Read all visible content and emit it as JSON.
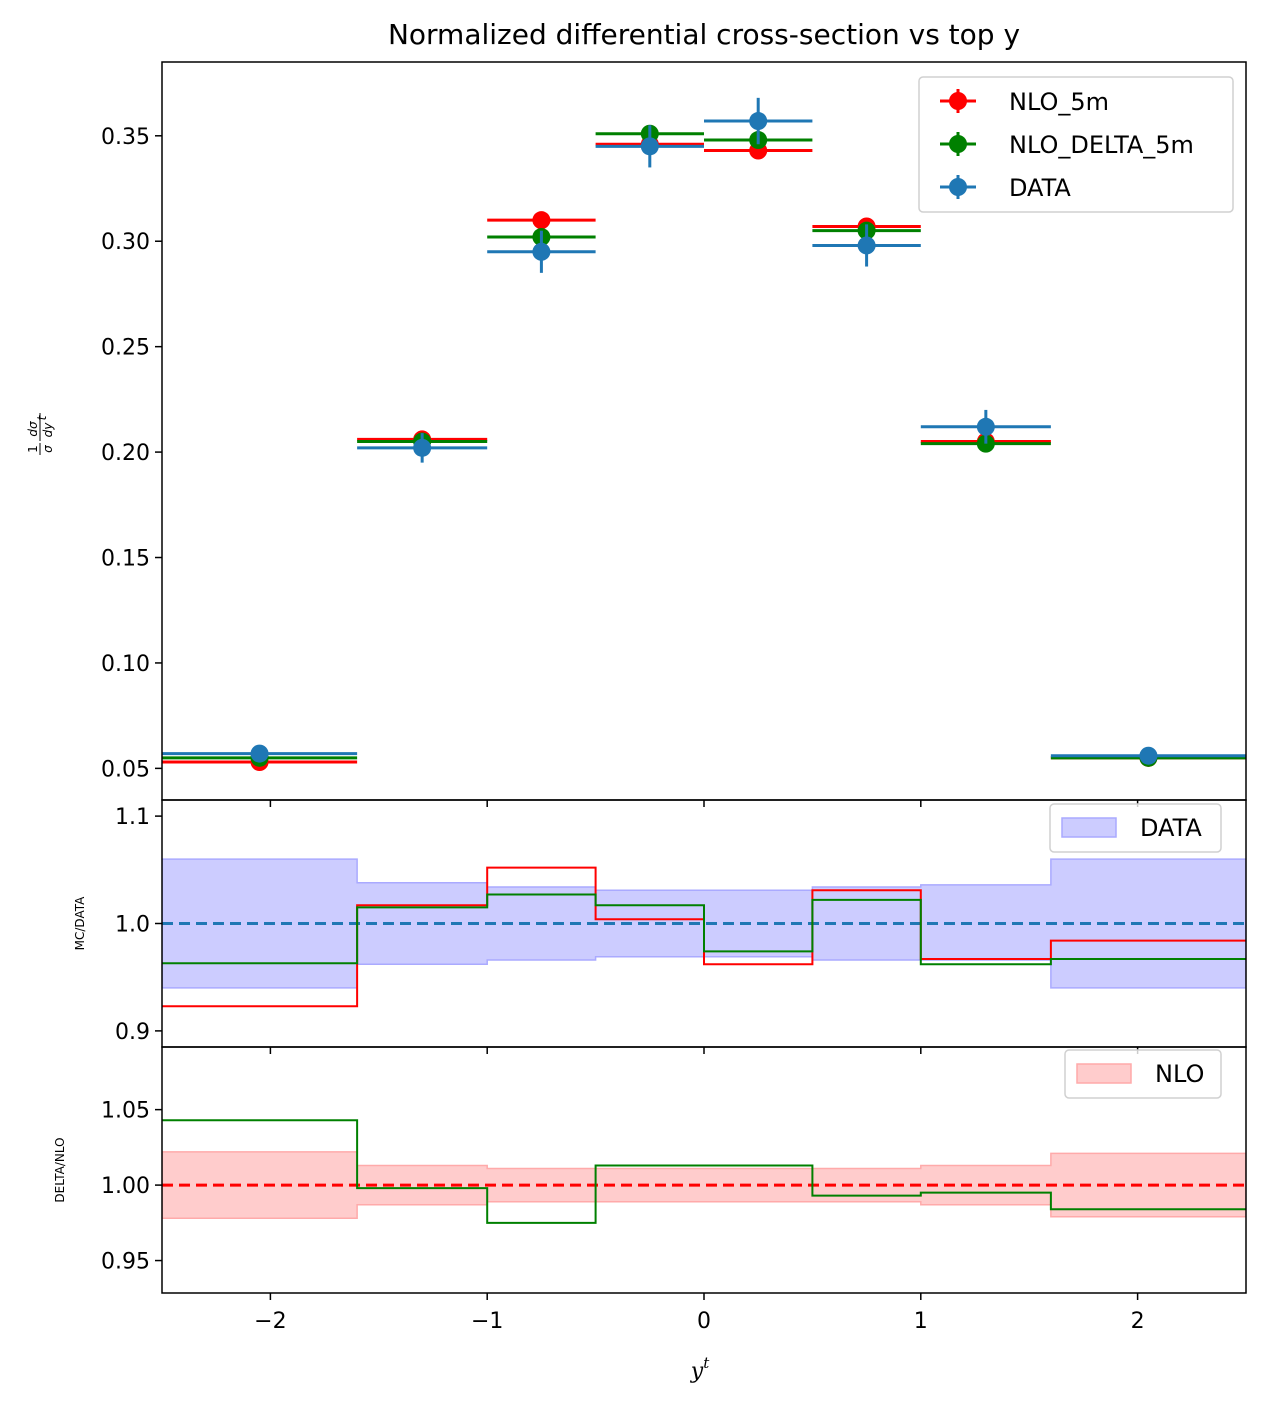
{
  "title": "Normalized differential cross-section vs top y",
  "colors": {
    "NLO_5m": "#ff0000",
    "NLO_DELTA_5m": "#008000",
    "DATA": "#1f77b4",
    "data_band": "#ccccff",
    "nlo_band": "#ffcccc"
  },
  "chart_data": [
    {
      "type": "scatter",
      "panel": "main",
      "title": "Normalized differential cross-section vs top y",
      "ylabel": "1/σ dσ/dy^t",
      "xlim": [
        -2.5,
        2.5
      ],
      "ylim": [
        0.035,
        0.385
      ],
      "yticks": [
        0.05,
        0.1,
        0.15,
        0.2,
        0.25,
        0.3,
        0.35
      ],
      "ytick_labels": [
        "0.05",
        "0.10",
        "0.15",
        "0.20",
        "0.25",
        "0.30",
        "0.35"
      ],
      "bins": [
        [
          -2.5,
          -1.6
        ],
        [
          -1.6,
          -1.0
        ],
        [
          -1.0,
          -0.5
        ],
        [
          -0.5,
          0.0
        ],
        [
          0.0,
          0.5
        ],
        [
          0.5,
          1.0
        ],
        [
          1.0,
          1.6
        ],
        [
          1.6,
          2.5
        ]
      ],
      "x": [
        -2.05,
        -1.3,
        -0.75,
        -0.25,
        0.25,
        0.75,
        1.3,
        2.05
      ],
      "legend": {
        "location": "top-right",
        "entries": [
          "NLO_5m",
          "NLO_DELTA_5m",
          "DATA"
        ]
      },
      "series": [
        {
          "name": "NLO_5m",
          "values": [
            0.053,
            0.206,
            0.31,
            0.346,
            0.343,
            0.307,
            0.205,
            0.055
          ],
          "yerr": [
            0,
            0,
            0,
            0,
            0,
            0,
            0,
            0
          ]
        },
        {
          "name": "NLO_DELTA_5m",
          "values": [
            0.055,
            0.205,
            0.302,
            0.351,
            0.348,
            0.305,
            0.204,
            0.055
          ],
          "yerr": [
            0,
            0,
            0,
            0,
            0,
            0,
            0,
            0
          ]
        },
        {
          "name": "DATA",
          "values": [
            0.057,
            0.202,
            0.295,
            0.345,
            0.357,
            0.298,
            0.212,
            0.056
          ],
          "yerr": [
            0.003,
            0.007,
            0.01,
            0.01,
            0.011,
            0.01,
            0.008,
            0.003
          ]
        }
      ]
    },
    {
      "type": "line",
      "panel": "ratio",
      "ylabel": "MC/DATA",
      "xlim": [
        -2.5,
        2.5
      ],
      "ylim": [
        0.885,
        1.115
      ],
      "yticks": [
        0.9,
        1.0,
        1.1
      ],
      "ytick_labels": [
        "0.9",
        "1.0",
        "1.1"
      ],
      "edges": [
        -2.5,
        -1.6,
        -1.0,
        -0.5,
        0.0,
        0.5,
        1.0,
        1.6,
        2.5
      ],
      "reference": 1.0,
      "legend": {
        "location": "top-right",
        "entries": [
          "DATA"
        ]
      },
      "band": {
        "name": "DATA",
        "low": [
          0.94,
          0.962,
          0.966,
          0.969,
          0.969,
          0.966,
          0.966,
          0.94
        ],
        "high": [
          1.06,
          1.038,
          1.034,
          1.031,
          1.031,
          1.034,
          1.036,
          1.06
        ]
      },
      "series": [
        {
          "name": "NLO_5m",
          "values": [
            0.923,
            1.017,
            1.052,
            1.004,
            0.962,
            1.031,
            0.967,
            0.984
          ]
        },
        {
          "name": "NLO_DELTA_5m",
          "values": [
            0.963,
            1.015,
            1.027,
            1.017,
            0.974,
            1.022,
            0.962,
            0.967
          ]
        }
      ]
    },
    {
      "type": "line",
      "panel": "delta_ratio",
      "ylabel": "DELTA/NLO",
      "xlabel": "y^t",
      "xlim": [
        -2.5,
        2.5
      ],
      "ylim": [
        0.9285,
        1.0915
      ],
      "yticks": [
        0.95,
        1.0,
        1.05
      ],
      "ytick_labels": [
        "0.95",
        "1.00",
        "1.05"
      ],
      "xticks": [
        -2,
        -1,
        0,
        1,
        2
      ],
      "xtick_labels": [
        "−2",
        "−1",
        "0",
        "1",
        "2"
      ],
      "edges": [
        -2.5,
        -1.6,
        -1.0,
        -0.5,
        0.0,
        0.5,
        1.0,
        1.6,
        2.5
      ],
      "reference": 1.0,
      "legend": {
        "location": "top-right",
        "entries": [
          "NLO"
        ]
      },
      "band": {
        "name": "NLO",
        "low": [
          0.978,
          0.987,
          0.989,
          0.989,
          0.989,
          0.989,
          0.987,
          0.979
        ],
        "high": [
          1.022,
          1.013,
          1.011,
          1.011,
          1.011,
          1.011,
          1.013,
          1.021
        ]
      },
      "series": [
        {
          "name": "NLO_DELTA_5m",
          "values": [
            1.043,
            0.998,
            0.975,
            1.013,
            1.013,
            0.993,
            0.995,
            0.984
          ]
        }
      ]
    }
  ]
}
